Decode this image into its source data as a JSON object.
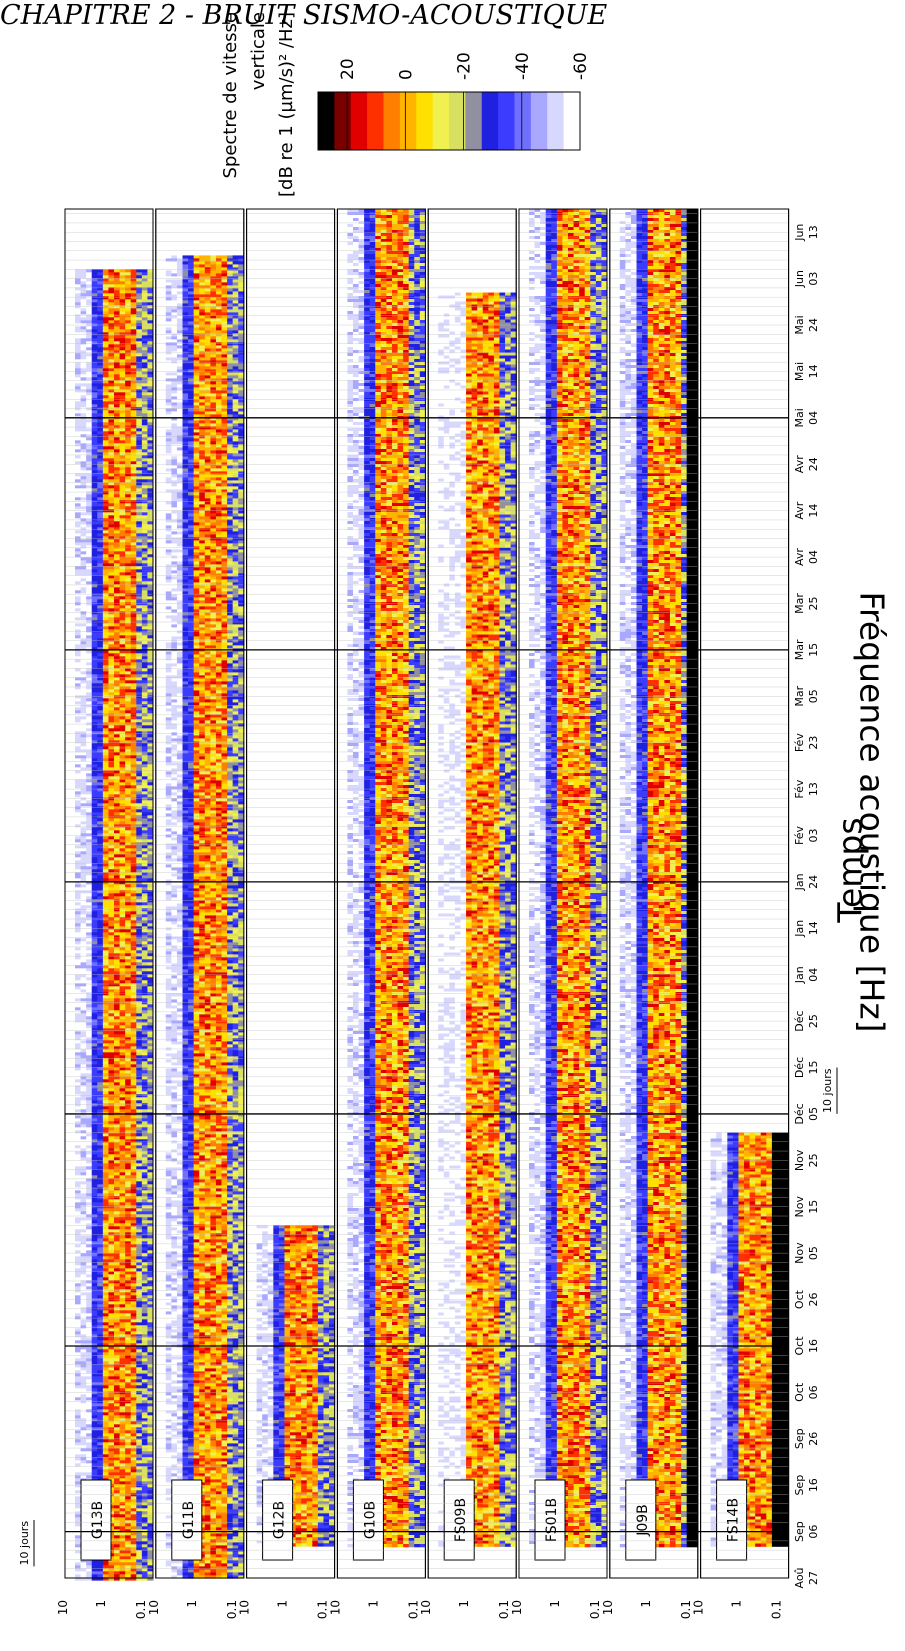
{
  "page_header": "CHAPITRE 2 - BRUIT SISMO-ACOUSTIQUE",
  "chart_data": {
    "type": "heatmap",
    "orientation": "rotated-90",
    "xlabel": "Temps",
    "ylabel": "Fréquence acoustique [Hz]",
    "time_ticks": [
      {
        "month": "Aoû",
        "day": "27"
      },
      {
        "month": "Sep",
        "day": "06"
      },
      {
        "month": "Sep",
        "day": "16"
      },
      {
        "month": "Sep",
        "day": "26"
      },
      {
        "month": "Oct",
        "day": "06"
      },
      {
        "month": "Oct",
        "day": "16"
      },
      {
        "month": "Oct",
        "day": "26"
      },
      {
        "month": "Nov",
        "day": "05"
      },
      {
        "month": "Nov",
        "day": "15"
      },
      {
        "month": "Nov",
        "day": "25"
      },
      {
        "month": "Déc",
        "day": "05"
      },
      {
        "month": "Déc",
        "day": "15"
      },
      {
        "month": "Déc",
        "day": "25"
      },
      {
        "month": "Jan",
        "day": "04"
      },
      {
        "month": "Jan",
        "day": "14"
      },
      {
        "month": "Jan",
        "day": "24"
      },
      {
        "month": "Fév",
        "day": "03"
      },
      {
        "month": "Fév",
        "day": "13"
      },
      {
        "month": "Fév",
        "day": "23"
      },
      {
        "month": "Mar",
        "day": "05"
      },
      {
        "month": "Mar",
        "day": "15"
      },
      {
        "month": "Mar",
        "day": "25"
      },
      {
        "month": "Avr",
        "day": "04"
      },
      {
        "month": "Avr",
        "day": "14"
      },
      {
        "month": "Avr",
        "day": "24"
      },
      {
        "month": "Mai",
        "day": "04"
      },
      {
        "month": "Mai",
        "day": "14"
      },
      {
        "month": "Mai",
        "day": "24"
      },
      {
        "month": "Jun",
        "day": "03"
      },
      {
        "month": "Jun",
        "day": "13"
      }
    ],
    "time_range_days": [
      0,
      295
    ],
    "major_grid_days": [
      10,
      50,
      100,
      150,
      200,
      250
    ],
    "freq_ticks": [
      "10",
      "1",
      "0.1"
    ],
    "freq_scale": "log",
    "scale_bar_label": "10 jours",
    "colorbar": {
      "title_lines": [
        "Spectre de vitesse",
        "verticale",
        "[dB re 1 (µm/s)² /Hz]"
      ],
      "ticks": [
        "20",
        "0",
        "-20",
        "-40",
        "-60"
      ],
      "range": [
        30,
        -60
      ],
      "colors": [
        "#000000",
        "#7a0000",
        "#e00000",
        "#ff3000",
        "#ff8000",
        "#ffb400",
        "#ffe000",
        "#f0f050",
        "#d8e060",
        "#9090a0",
        "#2020e0",
        "#3c3cff",
        "#7070ff",
        "#a8a8ff",
        "#d8d8ff",
        "#ffffff"
      ]
    },
    "series": [
      {
        "name": "G13B",
        "start_day": 0,
        "end_day": 282
      },
      {
        "name": "G11B",
        "start_day": 0,
        "end_day": 285
      },
      {
        "name": "G12B",
        "start_day": 7,
        "end_day": 76
      },
      {
        "name": "G10B",
        "start_day": 7,
        "end_day": 295
      },
      {
        "name": "FS09B",
        "start_day": 7,
        "end_day": 277
      },
      {
        "name": "FS01B",
        "start_day": 7,
        "end_day": 295
      },
      {
        "name": "J09B",
        "start_day": 7,
        "end_day": 295
      },
      {
        "name": "FS14B",
        "start_day": 7,
        "end_day": 96
      }
    ]
  }
}
